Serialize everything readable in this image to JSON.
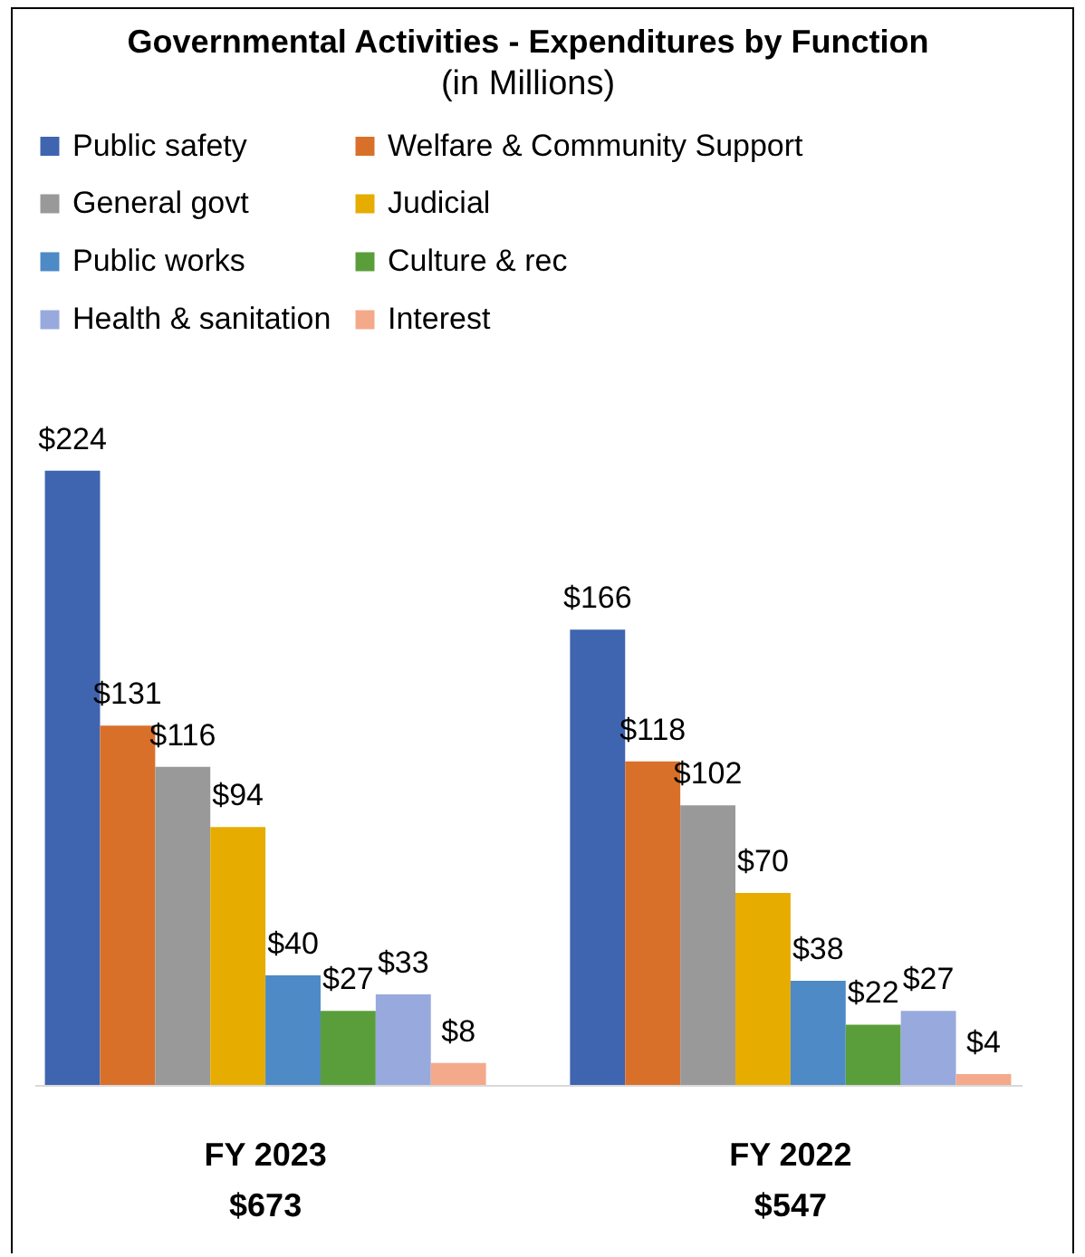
{
  "chart_data": {
    "type": "bar",
    "title": "Governmental Activities - Expenditures by Function",
    "subtitle": "(in Millions)",
    "categories": [
      "FY 2023\n$673",
      "FY 2022\n$547"
    ],
    "series": [
      {
        "name": "Public safety",
        "color": "#3f64b0",
        "values": [
          224,
          166
        ],
        "value_labels": [
          "$224",
          "$166"
        ]
      },
      {
        "name": "Welfare & Community Support",
        "color": "#d9702a",
        "values": [
          131,
          118
        ],
        "value_labels": [
          "$131",
          "$118"
        ]
      },
      {
        "name": "General govt",
        "color": "#999999",
        "values": [
          116,
          102
        ],
        "value_labels": [
          "$116",
          "$102"
        ]
      },
      {
        "name": "Judicial",
        "color": "#e6ac00",
        "values": [
          94,
          70
        ],
        "value_labels": [
          "$94",
          "$70"
        ]
      },
      {
        "name": "Public works",
        "color": "#4d8ac6",
        "values": [
          40,
          38
        ],
        "value_labels": [
          "$40",
          "$38"
        ]
      },
      {
        "name": "Culture & rec",
        "color": "#5a9e3c",
        "values": [
          27,
          22
        ],
        "value_labels": [
          "$27",
          "$22"
        ]
      },
      {
        "name": "Health & sanitation",
        "color": "#98a9dd",
        "values": [
          33,
          27
        ],
        "value_labels": [
          "$33",
          "$27"
        ]
      },
      {
        "name": "Interest",
        "color": "#f4a98a",
        "values": [
          8,
          4
        ],
        "value_labels": [
          "$8",
          "$4"
        ]
      }
    ],
    "legend": "top"
  }
}
